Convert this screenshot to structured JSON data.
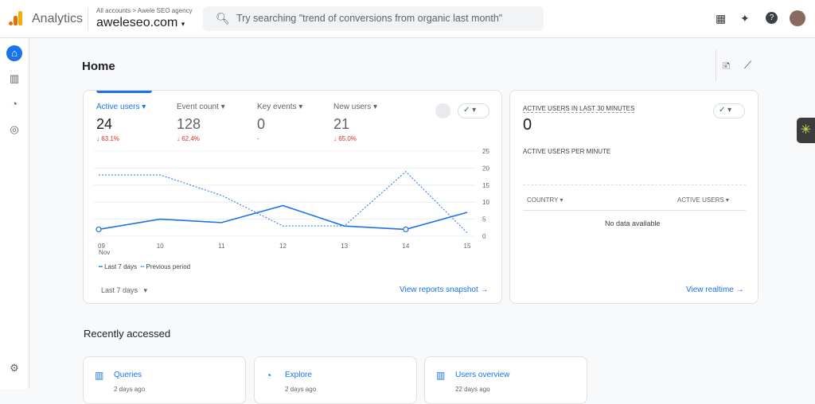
{
  "header": {
    "brand": "Analytics",
    "breadcrumb": "All accounts > Awele SEO agency",
    "property": "aweleseo.com",
    "search_placeholder": "Try searching \"trend of conversions from organic last month\""
  },
  "page": {
    "title": "Home"
  },
  "metrics": [
    {
      "label": "Active users",
      "value": "24",
      "change": "63.1%",
      "direction": "down"
    },
    {
      "label": "Event count",
      "value": "128",
      "change": "62.4%",
      "direction": "down"
    },
    {
      "label": "Key events",
      "value": "0",
      "change": "-",
      "direction": "none"
    },
    {
      "label": "New users",
      "value": "21",
      "change": "65.0%",
      "direction": "down"
    }
  ],
  "chart_data": {
    "type": "line",
    "x": [
      "09\nNov",
      "10",
      "11",
      "12",
      "13",
      "14",
      "15"
    ],
    "x_labels": [
      "09",
      "10",
      "11",
      "12",
      "13",
      "14",
      "15"
    ],
    "x_sub": "Nov",
    "y_ticks": [
      "0",
      "5",
      "10",
      "15",
      "20",
      "25"
    ],
    "ylim": [
      0,
      25
    ],
    "series": [
      {
        "name": "Last 7 days",
        "values": [
          2,
          5,
          4,
          9,
          3,
          2,
          7
        ]
      },
      {
        "name": "Previous period",
        "values": [
          18,
          18,
          12,
          3,
          3,
          19,
          1
        ]
      }
    ],
    "legend": "bottom-left",
    "grid": true
  },
  "date_range": "Last 7 days",
  "view_snapshot": "View reports snapshot",
  "realtime": {
    "title": "ACTIVE USERS IN LAST 30 MINUTES",
    "value": "0",
    "subtitle": "ACTIVE USERS PER MINUTE",
    "col1": "COUNTRY",
    "col2": "ACTIVE USERS",
    "empty": "No data available",
    "link": "View realtime"
  },
  "recent": {
    "title": "Recently accessed",
    "items": [
      {
        "name": "Queries",
        "time": "2 days ago"
      },
      {
        "name": "Explore",
        "time": "2 days ago"
      },
      {
        "name": "Users overview",
        "time": "22 days ago"
      }
    ]
  },
  "colors": {
    "accent": "#1a73e8",
    "negative": "#d93025"
  }
}
